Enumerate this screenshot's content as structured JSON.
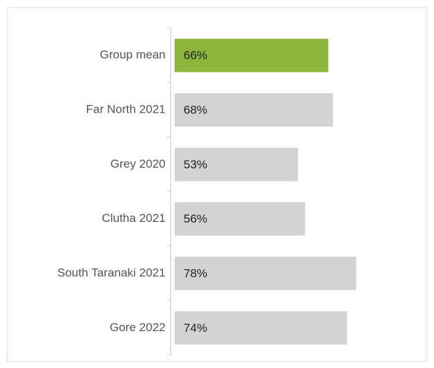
{
  "chart_data": {
    "type": "barh",
    "categories": [
      "Group mean",
      "Far North 2021",
      "Grey 2020",
      "Clutha 2021",
      "South Taranaki 2021",
      "Gore 2022"
    ],
    "values": [
      66,
      68,
      53,
      56,
      78,
      74
    ],
    "value_labels": [
      "66%",
      "68%",
      "53%",
      "56%",
      "78%",
      "74%"
    ],
    "colors": [
      "#8cb63c",
      "#d3d3d3",
      "#d3d3d3",
      "#d3d3d3",
      "#d3d3d3",
      "#d3d3d3"
    ],
    "xlim": [
      0,
      100
    ]
  }
}
